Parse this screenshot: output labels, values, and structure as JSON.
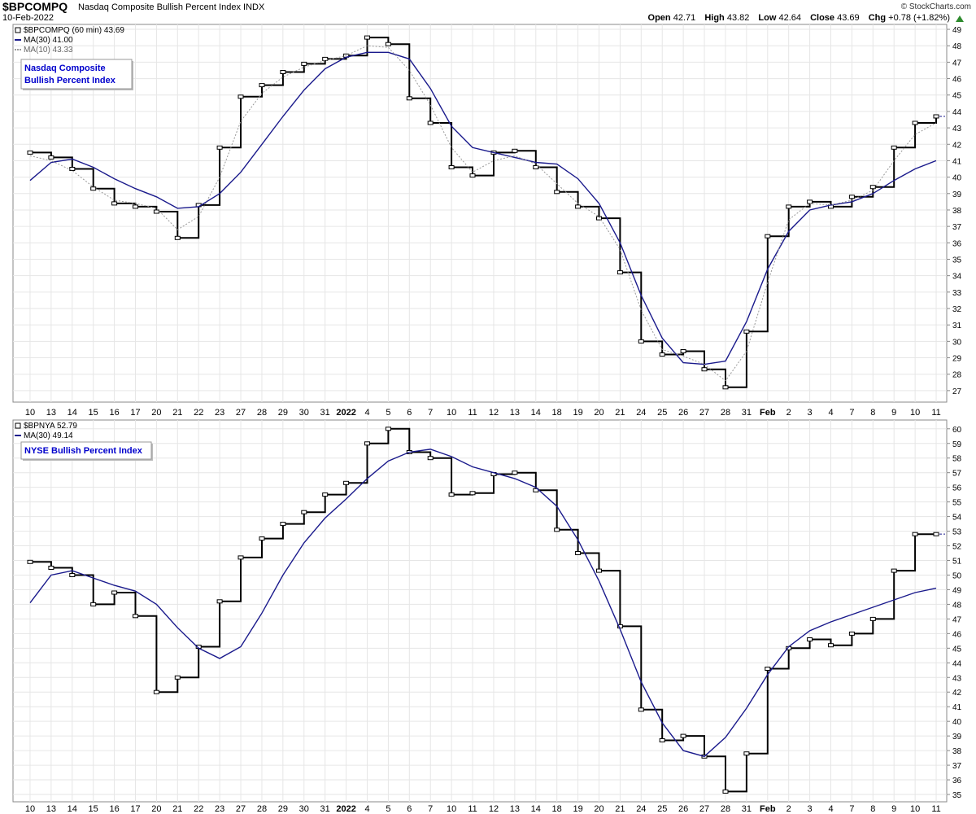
{
  "header": {
    "symbol": "$BPCOMPQ",
    "name": "Nasdaq Composite Bullish Percent Index",
    "exchange": "INDX",
    "date": "10-Feb-2022",
    "brand": "© StockCharts.com",
    "ohlc": {
      "open_label": "Open",
      "open": "42.71",
      "high_label": "High",
      "high": "43.82",
      "low_label": "Low",
      "low": "42.64",
      "close_label": "Close",
      "close": "43.69",
      "chg_label": "Chg",
      "chg": "+0.78 (+1.82%)"
    }
  },
  "colors": {
    "price": "#000000",
    "ma30": "#1a1a8c",
    "ma10": "#999999",
    "grid": "#e6e6e6",
    "up_arrow": "#2e8b2e"
  },
  "x_axis_labels": [
    "10",
    "13",
    "14",
    "15",
    "16",
    "17",
    "20",
    "21",
    "22",
    "23",
    "27",
    "28",
    "29",
    "30",
    "31",
    "2022",
    "4",
    "5",
    "6",
    "7",
    "10",
    "11",
    "12",
    "13",
    "14",
    "18",
    "19",
    "20",
    "21",
    "24",
    "25",
    "26",
    "27",
    "28",
    "31",
    "Feb",
    "2",
    "3",
    "4",
    "7",
    "8",
    "9",
    "10",
    "11"
  ],
  "chart_data": [
    {
      "type": "line",
      "panel": "top",
      "interval": "60 min",
      "legend": [
        {
          "name": "$BPCOMPQ (60 min)",
          "value": "43.69",
          "marker": "glyph"
        },
        {
          "name": "MA(30)",
          "value": "41.00",
          "marker": "solid"
        },
        {
          "name": "MA(10)",
          "value": "43.33",
          "marker": "dotted"
        }
      ],
      "annotation": [
        "Nasdaq Composite",
        "Bullish Percent Index"
      ],
      "ylim": [
        26.3,
        49.3
      ],
      "y_ticks": [
        27,
        28,
        29,
        30,
        31,
        32,
        33,
        34,
        35,
        36,
        37,
        38,
        39,
        40,
        41,
        42,
        43,
        44,
        45,
        46,
        47,
        48,
        49
      ],
      "x": [
        0,
        1,
        2,
        3,
        4,
        5,
        6,
        7,
        8,
        9,
        10,
        11,
        12,
        13,
        14,
        15,
        16,
        17,
        18,
        19,
        20,
        21,
        22,
        23,
        24,
        25,
        26,
        27,
        28,
        29,
        30,
        31,
        32,
        33,
        34,
        35,
        36,
        37,
        38,
        39,
        40,
        41,
        42,
        43
      ],
      "series": [
        {
          "name": "$BPCOMPQ",
          "values": [
            41.5,
            41.2,
            40.5,
            39.3,
            38.4,
            38.2,
            37.9,
            36.3,
            38.3,
            41.8,
            44.9,
            45.6,
            46.4,
            46.9,
            47.2,
            47.4,
            48.5,
            48.1,
            44.8,
            43.3,
            40.6,
            40.1,
            41.5,
            41.6,
            40.6,
            39.1,
            38.2,
            37.5,
            34.2,
            30.0,
            29.2,
            29.4,
            28.3,
            27.2,
            30.6,
            36.4,
            38.2,
            38.5,
            38.2,
            38.8,
            39.4,
            41.8,
            43.3,
            43.7
          ]
        },
        {
          "name": "MA(30)",
          "values": [
            39.8,
            40.9,
            41.1,
            40.6,
            39.9,
            39.3,
            38.8,
            38.1,
            38.2,
            39.0,
            40.3,
            42.0,
            43.7,
            45.3,
            46.6,
            47.3,
            47.6,
            47.6,
            47.2,
            45.4,
            43.1,
            41.8,
            41.5,
            41.2,
            40.9,
            40.8,
            39.9,
            38.4,
            36.0,
            32.8,
            30.2,
            28.7,
            28.6,
            28.8,
            31.2,
            34.4,
            36.7,
            38.0,
            38.3,
            38.5,
            39.0,
            39.8,
            40.5,
            41.0
          ]
        },
        {
          "name": "MA(10)",
          "values": [
            41.3,
            41.0,
            40.4,
            39.4,
            38.6,
            38.4,
            38.1,
            36.8,
            37.6,
            40.0,
            43.4,
            45.1,
            46.1,
            46.7,
            47.1,
            47.4,
            48.0,
            47.9,
            46.5,
            44.4,
            41.8,
            40.3,
            41.0,
            41.3,
            40.8,
            39.6,
            38.4,
            37.6,
            35.6,
            31.9,
            29.5,
            29.1,
            28.6,
            27.6,
            29.4,
            33.6,
            37.4,
            38.4,
            38.3,
            38.6,
            39.2,
            41.0,
            42.6,
            43.3
          ]
        }
      ]
    },
    {
      "type": "line",
      "panel": "bottom",
      "legend": [
        {
          "name": "$BPNYA",
          "value": "52.79",
          "marker": "glyph"
        },
        {
          "name": "MA(30)",
          "value": "49.14",
          "marker": "solid"
        }
      ],
      "annotation": [
        "NYSE Bullish Percent Index"
      ],
      "ylim": [
        34.5,
        60.6
      ],
      "y_ticks": [
        35,
        36,
        37,
        38,
        39,
        40,
        41,
        42,
        43,
        44,
        45,
        46,
        47,
        48,
        49,
        50,
        51,
        52,
        53,
        54,
        55,
        56,
        57,
        58,
        59,
        60
      ],
      "x": [
        0,
        1,
        2,
        3,
        4,
        5,
        6,
        7,
        8,
        9,
        10,
        11,
        12,
        13,
        14,
        15,
        16,
        17,
        18,
        19,
        20,
        21,
        22,
        23,
        24,
        25,
        26,
        27,
        28,
        29,
        30,
        31,
        32,
        33,
        34,
        35,
        36,
        37,
        38,
        39,
        40,
        41,
        42,
        43
      ],
      "series": [
        {
          "name": "$BPNYA",
          "values": [
            50.9,
            50.5,
            50.0,
            48.0,
            48.8,
            47.2,
            42.0,
            43.0,
            45.1,
            48.2,
            51.2,
            52.5,
            53.5,
            54.3,
            55.5,
            56.3,
            59.0,
            60.0,
            58.4,
            58.0,
            55.5,
            55.6,
            56.9,
            57.0,
            55.8,
            53.1,
            51.5,
            50.3,
            46.5,
            40.8,
            38.7,
            39.0,
            37.6,
            35.2,
            37.8,
            43.6,
            45.0,
            45.6,
            45.2,
            46.0,
            47.0,
            50.3,
            52.8,
            52.8
          ]
        },
        {
          "name": "MA(30)",
          "values": [
            48.1,
            50.0,
            50.3,
            49.8,
            49.3,
            48.9,
            48.0,
            46.4,
            45.0,
            44.3,
            45.1,
            47.4,
            50.0,
            52.2,
            53.9,
            55.2,
            56.6,
            57.8,
            58.4,
            58.6,
            58.1,
            57.4,
            57.0,
            56.6,
            56.0,
            54.7,
            52.4,
            49.6,
            46.3,
            42.7,
            39.9,
            38.0,
            37.6,
            38.9,
            40.9,
            43.2,
            45.1,
            46.2,
            46.8,
            47.3,
            47.8,
            48.3,
            48.8,
            49.1
          ]
        }
      ]
    }
  ]
}
